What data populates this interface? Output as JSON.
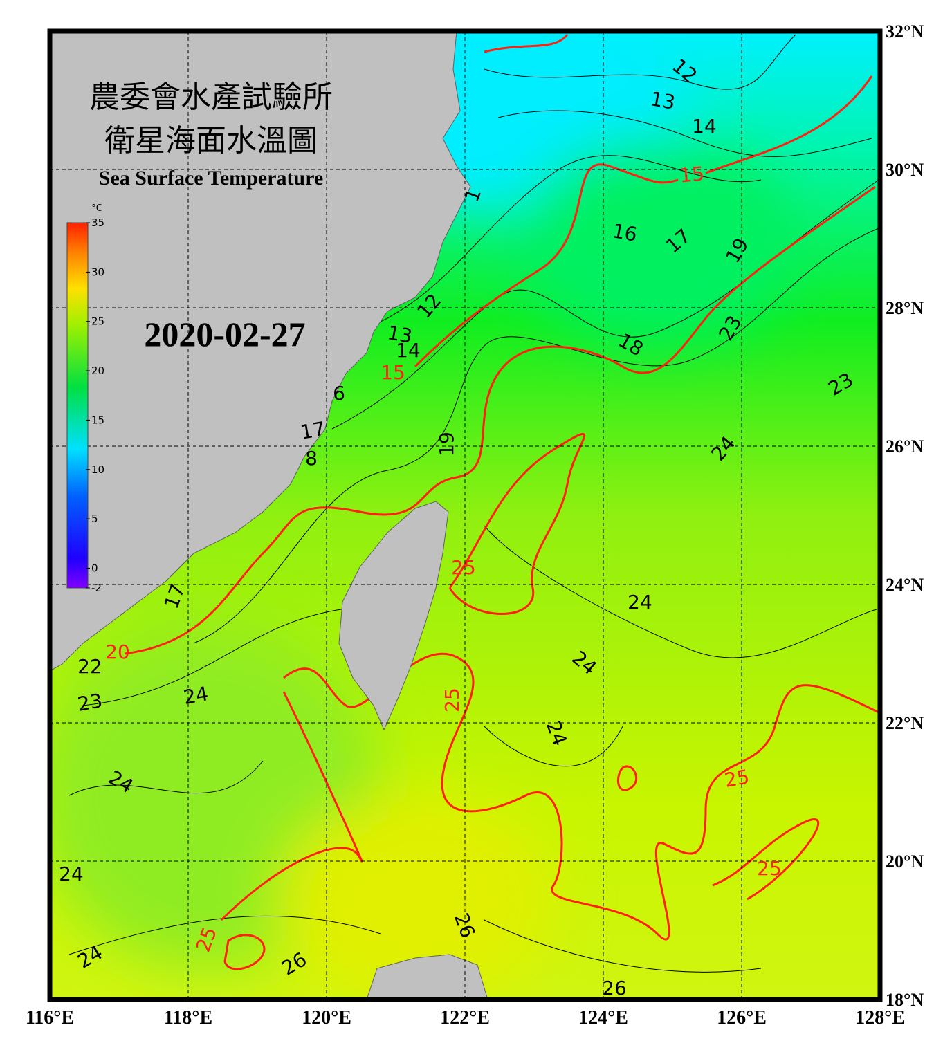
{
  "header": {
    "title_line1": "農委會水產試驗所",
    "title_line2": "衛星海面水溫圖",
    "subtitle": "Sea Surface Temperature",
    "date": "2020-02-27"
  },
  "colorbar": {
    "unit": "°C",
    "lim": [
      -2,
      35
    ],
    "ticks": [
      -2,
      0,
      5,
      10,
      15,
      20,
      25,
      30,
      35
    ]
  },
  "map": {
    "xlim": [
      116,
      128
    ],
    "ylim": [
      18,
      32
    ],
    "xticks": [
      {
        "value": 116,
        "label": "116°E"
      },
      {
        "value": 118,
        "label": "118°E"
      },
      {
        "value": 120,
        "label": "120°E"
      },
      {
        "value": 122,
        "label": "122°E"
      },
      {
        "value": 124,
        "label": "124°E"
      },
      {
        "value": 126,
        "label": "126°E"
      },
      {
        "value": 128,
        "label": "128°E"
      }
    ],
    "yticks": [
      {
        "value": 18,
        "label": "18°N"
      },
      {
        "value": 20,
        "label": "20°N"
      },
      {
        "value": 22,
        "label": "22°N"
      },
      {
        "value": 24,
        "label": "24°N"
      },
      {
        "value": 26,
        "label": "26°N"
      },
      {
        "value": 28,
        "label": "28°N"
      },
      {
        "value": 30,
        "label": "30°N"
      },
      {
        "value": 32,
        "label": "32°N"
      }
    ],
    "grid": true,
    "contour_labels": [
      12,
      13,
      14,
      15,
      16,
      17,
      19,
      12,
      13,
      14,
      15,
      18,
      23,
      23,
      24,
      17,
      8,
      6,
      19,
      25,
      24,
      17,
      24,
      24,
      23,
      22,
      20,
      25,
      24,
      24,
      25,
      24,
      25,
      26,
      25,
      24,
      26,
      26,
      1
    ]
  }
}
